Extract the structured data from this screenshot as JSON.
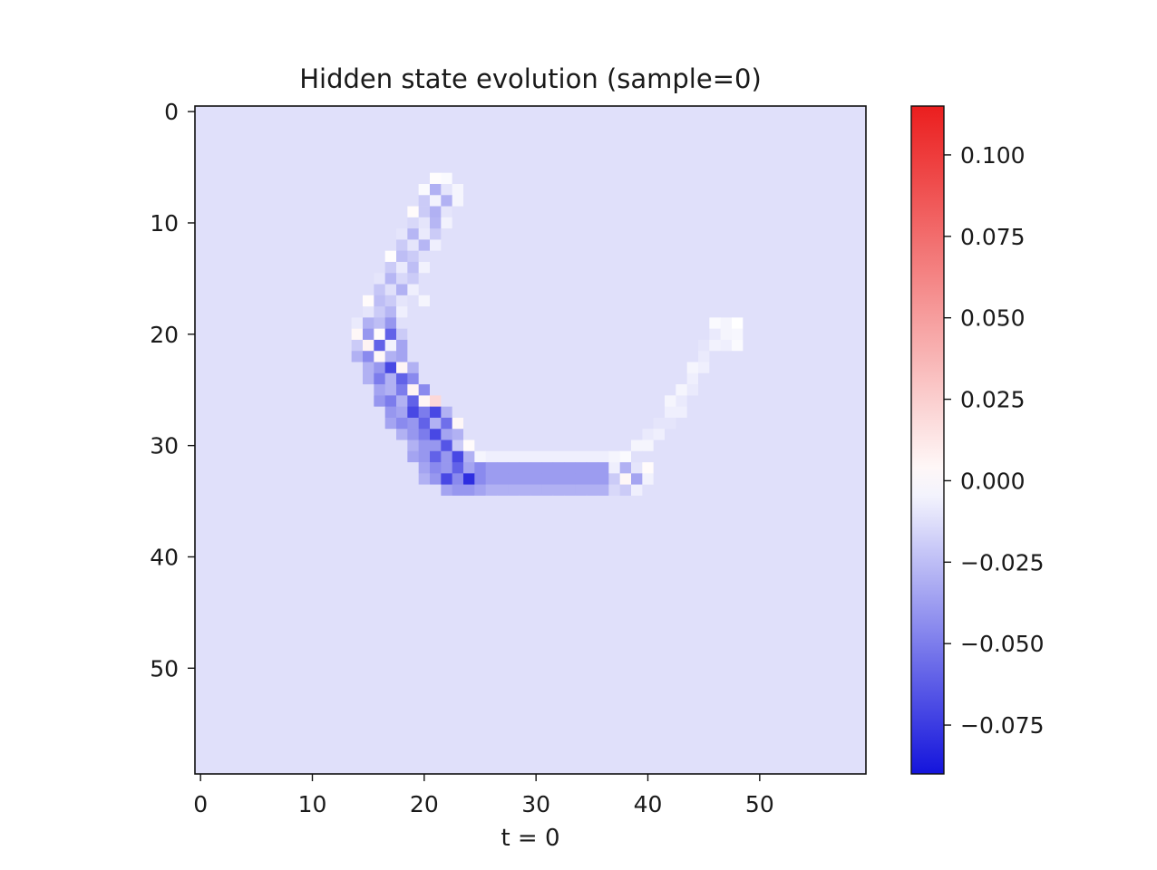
{
  "chart_data": {
    "type": "heatmap",
    "title": "Hidden state evolution (sample=0)",
    "xlabel": "t = 0",
    "ylabel": "",
    "grid_size": [
      60,
      60
    ],
    "xlim": [
      -0.5,
      59.5
    ],
    "ylim": [
      59.5,
      -0.5
    ],
    "x_ticks": [
      0,
      10,
      20,
      30,
      40,
      50
    ],
    "y_ticks": [
      0,
      10,
      20,
      30,
      40,
      50
    ],
    "colormap": "bwr",
    "colorbar": {
      "vmin": -0.09,
      "vmax": 0.115,
      "ticks": [
        -0.075,
        -0.05,
        -0.025,
        0.0,
        0.025,
        0.05,
        0.075,
        0.1
      ],
      "tick_labels": [
        "−0.075",
        "−0.050",
        "−0.025",
        "0.000",
        "0.025",
        "0.050",
        "0.075",
        "0.100"
      ]
    },
    "background_value": -0.012,
    "cells": [
      [
        6,
        21,
        0.001
      ],
      [
        6,
        22,
        -0.002
      ],
      [
        7,
        20,
        -0.002
      ],
      [
        7,
        21,
        -0.03
      ],
      [
        7,
        22,
        -0.01
      ],
      [
        7,
        23,
        -0.004
      ],
      [
        8,
        20,
        -0.02
      ],
      [
        8,
        21,
        -0.005
      ],
      [
        8,
        22,
        -0.03
      ],
      [
        8,
        23,
        -0.004
      ],
      [
        9,
        19,
        0.002
      ],
      [
        9,
        20,
        -0.02
      ],
      [
        9,
        21,
        -0.03
      ],
      [
        9,
        22,
        -0.01
      ],
      [
        10,
        19,
        -0.015
      ],
      [
        10,
        20,
        -0.01
      ],
      [
        10,
        21,
        -0.028
      ],
      [
        10,
        22,
        -0.005
      ],
      [
        11,
        18,
        -0.01
      ],
      [
        11,
        19,
        -0.028
      ],
      [
        11,
        20,
        -0.008
      ],
      [
        11,
        21,
        -0.02
      ],
      [
        12,
        18,
        -0.02
      ],
      [
        12,
        19,
        -0.01
      ],
      [
        12,
        20,
        -0.028
      ],
      [
        12,
        21,
        -0.006
      ],
      [
        13,
        17,
        0.001
      ],
      [
        13,
        18,
        -0.025
      ],
      [
        13,
        19,
        -0.02
      ],
      [
        13,
        20,
        -0.012
      ],
      [
        14,
        17,
        -0.02
      ],
      [
        14,
        18,
        -0.008
      ],
      [
        14,
        19,
        -0.025
      ],
      [
        14,
        20,
        -0.005
      ],
      [
        15,
        16,
        -0.01
      ],
      [
        15,
        17,
        -0.028
      ],
      [
        15,
        18,
        -0.015
      ],
      [
        15,
        19,
        -0.02
      ],
      [
        16,
        16,
        -0.022
      ],
      [
        16,
        17,
        -0.012
      ],
      [
        16,
        18,
        -0.03
      ],
      [
        16,
        19,
        -0.006
      ],
      [
        17,
        15,
        0.002
      ],
      [
        17,
        16,
        -0.025
      ],
      [
        17,
        17,
        -0.02
      ],
      [
        17,
        18,
        -0.01
      ],
      [
        17,
        20,
        -0.004
      ],
      [
        18,
        15,
        -0.01
      ],
      [
        18,
        16,
        -0.02
      ],
      [
        18,
        17,
        -0.028
      ],
      [
        18,
        18,
        -0.006
      ],
      [
        19,
        14,
        -0.008
      ],
      [
        19,
        15,
        -0.03
      ],
      [
        19,
        16,
        -0.025
      ],
      [
        19,
        17,
        -0.04
      ],
      [
        20,
        14,
        0.004
      ],
      [
        20,
        15,
        -0.04
      ],
      [
        20,
        16,
        0.002
      ],
      [
        20,
        17,
        -0.06
      ],
      [
        20,
        18,
        -0.02
      ],
      [
        21,
        14,
        -0.02
      ],
      [
        21,
        15,
        0.006
      ],
      [
        21,
        16,
        -0.06
      ],
      [
        21,
        17,
        -0.005
      ],
      [
        21,
        18,
        -0.035
      ],
      [
        22,
        14,
        -0.03
      ],
      [
        22,
        15,
        -0.045
      ],
      [
        22,
        16,
        0.004
      ],
      [
        22,
        17,
        -0.03
      ],
      [
        22,
        18,
        -0.035
      ],
      [
        23,
        15,
        -0.03
      ],
      [
        23,
        16,
        -0.04
      ],
      [
        23,
        17,
        -0.07
      ],
      [
        23,
        18,
        0.005
      ],
      [
        23,
        19,
        -0.03
      ],
      [
        24,
        15,
        -0.03
      ],
      [
        24,
        16,
        -0.05
      ],
      [
        24,
        17,
        -0.03
      ],
      [
        24,
        18,
        -0.06
      ],
      [
        24,
        19,
        -0.045
      ],
      [
        25,
        16,
        -0.035
      ],
      [
        25,
        17,
        -0.03
      ],
      [
        25,
        18,
        -0.05
      ],
      [
        25,
        19,
        0.006
      ],
      [
        25,
        20,
        -0.045
      ],
      [
        26,
        16,
        -0.04
      ],
      [
        26,
        17,
        -0.05
      ],
      [
        26,
        18,
        -0.03
      ],
      [
        26,
        19,
        -0.06
      ],
      [
        26,
        20,
        0.005
      ],
      [
        26,
        21,
        0.02
      ],
      [
        27,
        17,
        -0.04
      ],
      [
        27,
        18,
        -0.035
      ],
      [
        27,
        19,
        -0.07
      ],
      [
        27,
        20,
        -0.05
      ],
      [
        27,
        21,
        -0.07
      ],
      [
        27,
        22,
        -0.03
      ],
      [
        28,
        17,
        -0.035
      ],
      [
        28,
        18,
        -0.045
      ],
      [
        28,
        19,
        -0.04
      ],
      [
        28,
        20,
        -0.06
      ],
      [
        28,
        21,
        -0.03
      ],
      [
        28,
        22,
        -0.055
      ],
      [
        28,
        23,
        0.004
      ],
      [
        29,
        18,
        -0.03
      ],
      [
        29,
        19,
        -0.04
      ],
      [
        29,
        20,
        -0.05
      ],
      [
        29,
        21,
        -0.07
      ],
      [
        29,
        22,
        -0.035
      ],
      [
        29,
        23,
        -0.03
      ],
      [
        30,
        19,
        -0.03
      ],
      [
        30,
        20,
        -0.04
      ],
      [
        30,
        21,
        -0.04
      ],
      [
        30,
        22,
        -0.065
      ],
      [
        30,
        23,
        -0.02
      ],
      [
        30,
        24,
        0.002
      ],
      [
        31,
        19,
        -0.035
      ],
      [
        31,
        20,
        -0.04
      ],
      [
        31,
        21,
        -0.06
      ],
      [
        31,
        22,
        -0.04
      ],
      [
        31,
        23,
        -0.07
      ],
      [
        31,
        24,
        -0.03
      ],
      [
        31,
        25,
        -0.004
      ],
      [
        32,
        20,
        -0.035
      ],
      [
        32,
        21,
        -0.045
      ],
      [
        32,
        22,
        -0.04
      ],
      [
        32,
        23,
        -0.06
      ],
      [
        32,
        24,
        -0.035
      ],
      [
        32,
        25,
        -0.045
      ],
      [
        33,
        20,
        -0.03
      ],
      [
        33,
        21,
        -0.04
      ],
      [
        33,
        22,
        -0.07
      ],
      [
        33,
        23,
        -0.045
      ],
      [
        33,
        24,
        -0.08
      ],
      [
        33,
        25,
        -0.045
      ],
      [
        34,
        22,
        -0.035
      ],
      [
        34,
        23,
        -0.04
      ],
      [
        34,
        24,
        -0.04
      ],
      [
        34,
        25,
        -0.035
      ]
    ],
    "regions": [
      {
        "rows": [
          31,
          31
        ],
        "cols": [
          25,
          36
        ],
        "value": -0.006
      },
      {
        "rows": [
          32,
          33
        ],
        "cols": [
          26,
          36
        ],
        "value": -0.038
      },
      {
        "rows": [
          34,
          34
        ],
        "cols": [
          26,
          36
        ],
        "value": -0.03
      }
    ],
    "extra_cells": [
      [
        31,
        37,
        -0.004
      ],
      [
        31,
        38,
        -0.002
      ],
      [
        32,
        37,
        -0.006
      ],
      [
        32,
        38,
        -0.03
      ],
      [
        32,
        39,
        -0.01
      ],
      [
        32,
        40,
        0.002
      ],
      [
        33,
        37,
        -0.02
      ],
      [
        33,
        38,
        0.004
      ],
      [
        33,
        39,
        -0.035
      ],
      [
        33,
        40,
        -0.005
      ],
      [
        34,
        37,
        -0.015
      ],
      [
        34,
        38,
        -0.02
      ],
      [
        34,
        39,
        -0.006
      ],
      [
        30,
        39,
        -0.004
      ],
      [
        29,
        40,
        -0.008
      ],
      [
        30,
        40,
        -0.004
      ],
      [
        28,
        41,
        -0.01
      ],
      [
        29,
        41,
        -0.006
      ],
      [
        27,
        42,
        -0.006
      ],
      [
        28,
        42,
        -0.01
      ],
      [
        26,
        42,
        -0.004
      ],
      [
        26,
        43,
        -0.008
      ],
      [
        27,
        43,
        -0.006
      ],
      [
        24,
        44,
        -0.006
      ],
      [
        25,
        43,
        -0.004
      ],
      [
        25,
        44,
        -0.008
      ],
      [
        23,
        44,
        -0.004
      ],
      [
        22,
        45,
        -0.008
      ],
      [
        23,
        45,
        -0.006
      ],
      [
        21,
        45,
        -0.01
      ],
      [
        21,
        46,
        -0.005
      ],
      [
        20,
        46,
        -0.008
      ],
      [
        21,
        47,
        -0.006
      ],
      [
        20,
        47,
        -0.004
      ],
      [
        19,
        46,
        -0.002
      ],
      [
        19,
        47,
        -0.004
      ],
      [
        20,
        48,
        -0.003
      ],
      [
        19,
        48,
        0.0
      ],
      [
        21,
        48,
        -0.002
      ]
    ]
  }
}
